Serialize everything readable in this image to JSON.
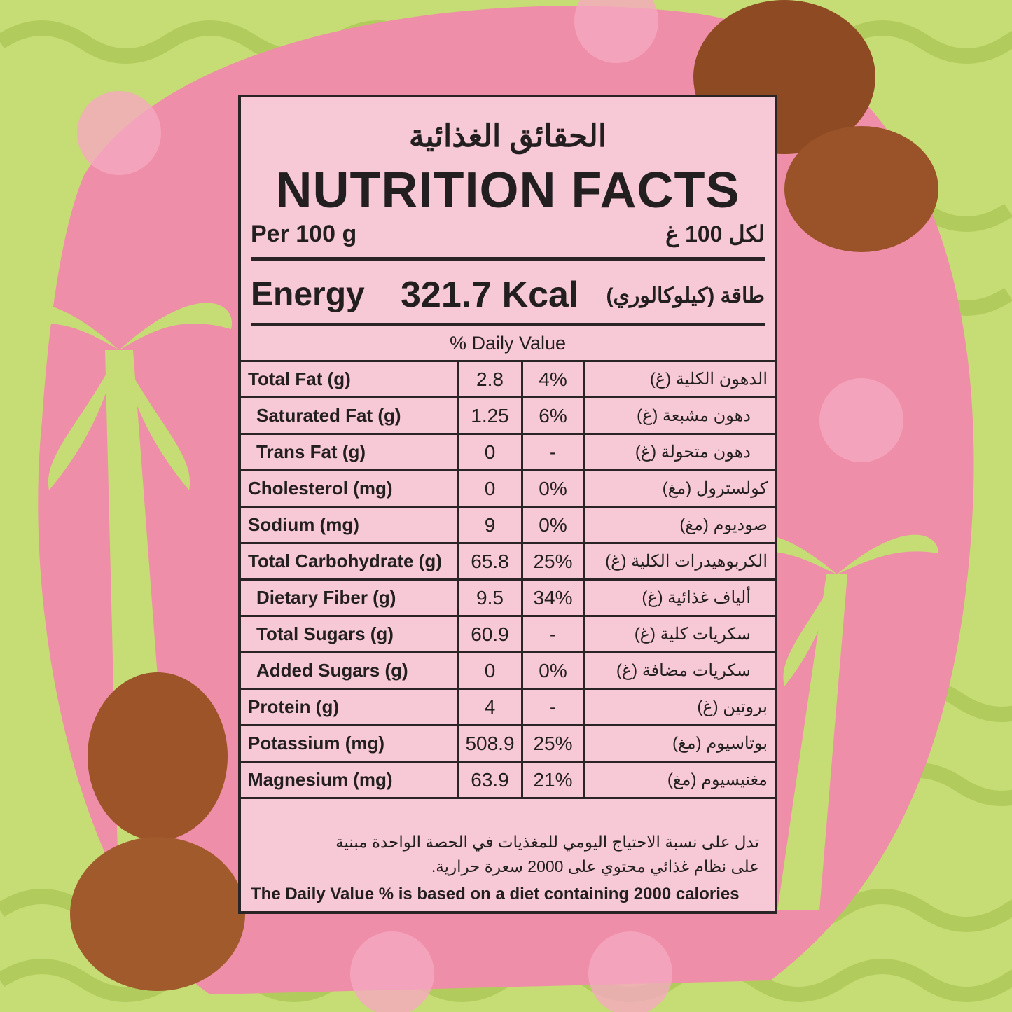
{
  "header": {
    "title_ar": "الحقائق الغذائية",
    "title": "NUTRITION FACTS",
    "per_en": "Per 100 g",
    "per_ar": "لكل 100 غ"
  },
  "energy": {
    "label": "Energy",
    "value": "321.7 Kcal",
    "label_ar": "طاقة (كيلوكالوري)"
  },
  "daily_value_header": "% Daily Value",
  "table": {
    "rows": [
      [
        "Total Fat (g)",
        "2.8",
        "4%",
        "الدهون الكلية (غ)"
      ],
      [
        "Saturated Fat (g)",
        "1.25",
        "6%",
        "دهون مشبعة (غ)"
      ],
      [
        "Trans Fat (g)",
        "0",
        "-",
        "دهون متحولة (غ)"
      ],
      [
        "Cholesterol (mg)",
        "0",
        "0%",
        "كولسترول (مغ)"
      ],
      [
        "Sodium (mg)",
        "9",
        "0%",
        "صوديوم (مغ)"
      ],
      [
        "Total Carbohydrate (g)",
        "65.8",
        "25%",
        "الكربوهيدرات الكلية (غ)"
      ],
      [
        "Dietary Fiber (g)",
        "9.5",
        "34%",
        "ألياف غذائية (غ)"
      ],
      [
        "Total Sugars (g)",
        "60.9",
        "-",
        "سكريات كلية (غ)"
      ],
      [
        "Added Sugars (g)",
        "0",
        "0%",
        "سكريات مضافة (غ)"
      ],
      [
        "Protein (g)",
        "4",
        "-",
        "بروتين (غ)"
      ],
      [
        "Potassium (mg)",
        "508.9",
        "25%",
        "بوتاسيوم (مغ)"
      ],
      [
        "Magnesium (mg)",
        "63.9",
        "21%",
        "مغنيسيوم (مغ)"
      ]
    ]
  },
  "footnote_ar": [
    "تدل على نسبة الاحتياج اليومي للمغذيات في الحصة الواحدة مبنية",
    "على نظام غذائي محتوي على 2000 سعرة حرارية."
  ],
  "footnote_en": "The Daily Value % is based on a diet containing 2000 calories"
}
